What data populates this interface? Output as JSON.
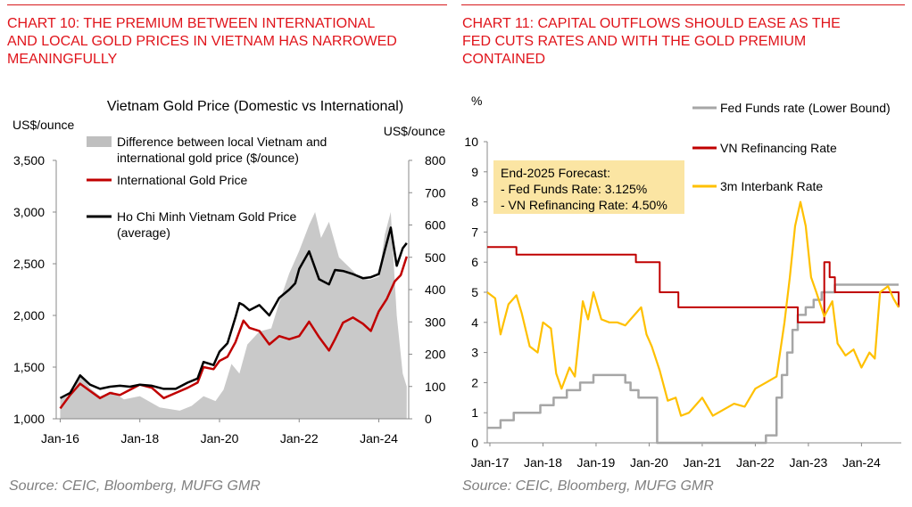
{
  "left": {
    "title_lines": [
      "CHART 10: THE PREMIUM BETWEEN INTERNATIONAL",
      "AND LOCAL GOLD PRICES IN VIETNAM HAS NARROWED",
      "MEANINGFULLY"
    ],
    "source": "Source: CEIC, Bloomberg, MUFG GMR"
  },
  "right": {
    "title_lines": [
      "CHART 11: CAPITAL OUTFLOWS SHOULD EASE AS THE",
      "FED CUTS RATES AND WITH THE GOLD PREMIUM",
      "CONTAINED"
    ],
    "source": "Source: CEIC, Bloomberg, MUFG GMR"
  },
  "colors": {
    "accent_red": "#e0141b",
    "grey_bar": "#bfbfbf",
    "intl_red": "#c00000",
    "black": "#000000",
    "fed_grey": "#a6a6a6",
    "vn_red": "#c00000",
    "interbank_orange": "#ffc000",
    "box_fill": "#fbe5a3"
  },
  "chart_data": [
    {
      "type": "line",
      "title": "Vietnam Gold Price (Domestic vs International)",
      "ylabel_left": "US$/ounce",
      "ylabel_right": "US$/ounce",
      "x_ticks": [
        "Jan-16",
        "Jan-18",
        "Jan-20",
        "Jan-22",
        "Jan-24"
      ],
      "x_range": [
        2015.9,
        2024.75
      ],
      "y_left_ticks": [
        "1,000",
        "1,500",
        "2,000",
        "2,500",
        "3,000",
        "3,500"
      ],
      "y_left_range": [
        1000,
        3500
      ],
      "y_right_ticks": [
        "0",
        "100",
        "200",
        "300",
        "400",
        "500",
        "600",
        "700",
        "800"
      ],
      "y_right_range": [
        0,
        800
      ],
      "legend": [
        "Difference between local Vietnam and international gold price ($/ounce)",
        "International Gold Price",
        "Ho Chi Minh Vietnam Gold Price (average)"
      ],
      "legend_lines": [
        [
          "Difference between local Vietnam and",
          "international gold price ($/ounce)"
        ],
        [
          "International Gold Price"
        ],
        [
          "Ho Chi Minh Vietnam Gold Price",
          "(average)"
        ]
      ],
      "series": [
        {
          "name": "Difference between local Vietnam and international gold price ($/ounce)",
          "axis": "right",
          "kind": "area",
          "x": [
            2016.0,
            2016.3,
            2016.5,
            2016.75,
            2017.0,
            2017.3,
            2017.6,
            2018.0,
            2018.5,
            2019.0,
            2019.3,
            2019.6,
            2019.9,
            2020.1,
            2020.3,
            2020.5,
            2020.7,
            2021.0,
            2021.3,
            2021.5,
            2021.75,
            2022.0,
            2022.25,
            2022.4,
            2022.55,
            2022.75,
            2023.0,
            2023.25,
            2023.5,
            2023.75,
            2024.0,
            2024.15,
            2024.3,
            2024.45,
            2024.6,
            2024.7
          ],
          "values": [
            60,
            75,
            140,
            95,
            70,
            85,
            60,
            70,
            35,
            25,
            40,
            70,
            55,
            90,
            170,
            140,
            230,
            270,
            280,
            360,
            450,
            520,
            600,
            640,
            560,
            610,
            500,
            470,
            440,
            430,
            440,
            570,
            640,
            320,
            140,
            100
          ]
        },
        {
          "name": "International Gold Price",
          "axis": "left",
          "kind": "line",
          "x": [
            2016.0,
            2016.25,
            2016.5,
            2016.75,
            2017.0,
            2017.25,
            2017.5,
            2017.75,
            2018.0,
            2018.3,
            2018.6,
            2018.9,
            2019.2,
            2019.45,
            2019.6,
            2019.85,
            2020.0,
            2020.2,
            2020.4,
            2020.6,
            2020.75,
            2021.0,
            2021.25,
            2021.5,
            2021.75,
            2022.0,
            2022.25,
            2022.5,
            2022.75,
            2022.9,
            2023.1,
            2023.35,
            2023.6,
            2023.8,
            2024.0,
            2024.2,
            2024.4,
            2024.55,
            2024.7
          ],
          "values": [
            1100,
            1230,
            1340,
            1270,
            1200,
            1250,
            1230,
            1280,
            1330,
            1300,
            1200,
            1250,
            1300,
            1350,
            1500,
            1480,
            1560,
            1600,
            1740,
            1950,
            1880,
            1850,
            1720,
            1800,
            1770,
            1800,
            1940,
            1790,
            1660,
            1770,
            1930,
            1980,
            1920,
            1850,
            2040,
            2160,
            2330,
            2390,
            2570
          ]
        },
        {
          "name": "Ho Chi Minh Vietnam Gold Price (average)",
          "axis": "left",
          "kind": "line",
          "x": [
            2016.0,
            2016.25,
            2016.5,
            2016.75,
            2017.0,
            2017.25,
            2017.5,
            2017.75,
            2018.0,
            2018.3,
            2018.6,
            2018.9,
            2019.2,
            2019.45,
            2019.6,
            2019.85,
            2020.0,
            2020.2,
            2020.4,
            2020.5,
            2020.6,
            2020.75,
            2021.0,
            2021.25,
            2021.5,
            2021.75,
            2021.9,
            2022.0,
            2022.25,
            2022.5,
            2022.75,
            2022.9,
            2023.1,
            2023.35,
            2023.6,
            2023.8,
            2024.0,
            2024.15,
            2024.3,
            2024.45,
            2024.6,
            2024.7
          ],
          "values": [
            1200,
            1250,
            1420,
            1330,
            1290,
            1310,
            1320,
            1310,
            1330,
            1320,
            1290,
            1290,
            1350,
            1390,
            1550,
            1520,
            1650,
            1730,
            1980,
            2120,
            2100,
            2050,
            2100,
            2000,
            2170,
            2250,
            2310,
            2450,
            2620,
            2350,
            2300,
            2440,
            2430,
            2400,
            2360,
            2370,
            2400,
            2630,
            2850,
            2480,
            2650,
            2700
          ]
        }
      ]
    },
    {
      "type": "line",
      "ylabel": "%",
      "x_ticks": [
        "Jan-17",
        "Jan-18",
        "Jan-19",
        "Jan-20",
        "Jan-21",
        "Jan-22",
        "Jan-23",
        "Jan-24"
      ],
      "x_range": [
        2016.95,
        2024.75
      ],
      "y_ticks": [
        "0",
        "1",
        "2",
        "3",
        "4",
        "5",
        "6",
        "7",
        "8",
        "9",
        "10"
      ],
      "y_range": [
        0,
        10
      ],
      "annotation": [
        "End-2025 Forecast:",
        "- Fed Funds Rate: 3.125%",
        "- VN Refinancing Rate: 4.50%"
      ],
      "legend": [
        "Fed Funds rate (Lower Bound)",
        "VN Refinancing Rate",
        "3m Interbank Rate"
      ],
      "series": [
        {
          "name": "Fed Funds rate (Lower Bound)",
          "step": true,
          "x": [
            2016.95,
            2017.2,
            2017.45,
            2017.95,
            2018.2,
            2018.45,
            2018.7,
            2018.95,
            2019.55,
            2019.65,
            2019.8,
            2020.15,
            2022.2,
            2022.4,
            2022.5,
            2022.6,
            2022.7,
            2022.8,
            2022.95,
            2023.1,
            2023.25,
            2023.5,
            2024.7
          ],
          "values": [
            0.5,
            0.75,
            1.0,
            1.25,
            1.5,
            1.75,
            2.0,
            2.25,
            2.0,
            1.75,
            1.5,
            0.0,
            0.25,
            1.5,
            2.25,
            3.0,
            3.75,
            4.25,
            4.5,
            4.75,
            5.0,
            5.25,
            5.25
          ]
        },
        {
          "name": "VN Refinancing Rate",
          "step": true,
          "x": [
            2016.95,
            2017.5,
            2019.75,
            2020.2,
            2020.55,
            2022.8,
            2023.3,
            2023.4,
            2023.5,
            2024.7
          ],
          "values": [
            6.5,
            6.25,
            6.0,
            5.0,
            4.5,
            4.0,
            6.0,
            5.5,
            5.0,
            4.5
          ]
        },
        {
          "name": "3m Interbank Rate",
          "step": false,
          "x": [
            2016.95,
            2017.1,
            2017.2,
            2017.35,
            2017.5,
            2017.6,
            2017.75,
            2017.9,
            2018.0,
            2018.15,
            2018.25,
            2018.35,
            2018.5,
            2018.6,
            2018.75,
            2018.85,
            2018.95,
            2019.1,
            2019.25,
            2019.4,
            2019.55,
            2019.7,
            2019.85,
            2019.95,
            2020.05,
            2020.2,
            2020.35,
            2020.5,
            2020.6,
            2020.75,
            2020.9,
            2021.0,
            2021.2,
            2021.4,
            2021.6,
            2021.8,
            2022.0,
            2022.2,
            2022.4,
            2022.55,
            2022.65,
            2022.75,
            2022.85,
            2022.95,
            2023.05,
            2023.15,
            2023.3,
            2023.45,
            2023.55,
            2023.7,
            2023.85,
            2024.0,
            2024.15,
            2024.25,
            2024.35,
            2024.5,
            2024.6,
            2024.7
          ],
          "values": [
            5.0,
            4.8,
            3.6,
            4.6,
            4.9,
            4.3,
            3.2,
            3.0,
            4.0,
            3.8,
            2.3,
            1.8,
            2.5,
            2.2,
            4.7,
            4.1,
            5.0,
            4.1,
            4.0,
            4.0,
            3.9,
            4.2,
            4.5,
            3.6,
            3.2,
            2.4,
            1.4,
            1.5,
            0.9,
            1.0,
            1.3,
            1.5,
            0.9,
            1.1,
            1.3,
            1.2,
            1.8,
            2.0,
            2.2,
            4.0,
            5.5,
            7.2,
            8.0,
            7.2,
            5.5,
            5.0,
            4.2,
            4.7,
            3.3,
            2.9,
            3.1,
            2.5,
            3.0,
            2.8,
            5.0,
            5.2,
            4.8,
            4.5
          ]
        }
      ]
    }
  ]
}
